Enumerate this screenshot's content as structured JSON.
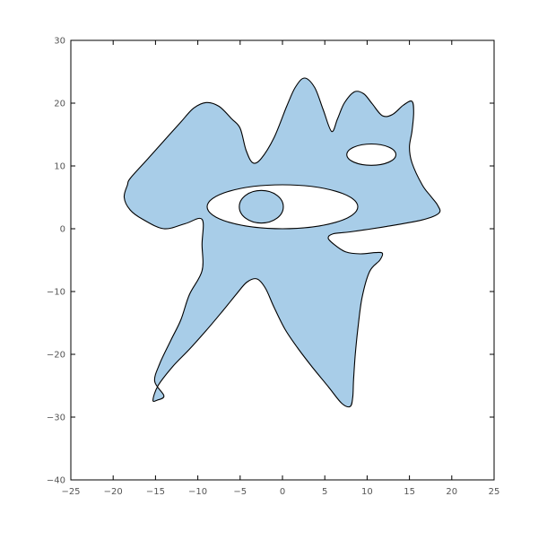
{
  "chart_data": {
    "type": "area",
    "title": "",
    "xlabel": "",
    "ylabel": "",
    "xlim": [
      -25,
      25
    ],
    "ylim": [
      -40,
      30
    ],
    "xticks": [
      -25,
      -20,
      -15,
      -10,
      -5,
      0,
      5,
      10,
      15,
      20,
      25
    ],
    "yticks": [
      -40,
      -30,
      -20,
      -10,
      0,
      10,
      20,
      30
    ],
    "grid": false,
    "fill_color": "#a8cde8",
    "edge_color": "#000000",
    "outline": [
      [
        -18,
        8
      ],
      [
        -16,
        11
      ],
      [
        -14,
        14
      ],
      [
        -12,
        17
      ],
      [
        -10.5,
        19.2
      ],
      [
        -9,
        20.1
      ],
      [
        -7.5,
        19.5
      ],
      [
        -6,
        17.5
      ],
      [
        -5,
        16
      ],
      [
        -4.3,
        12.5
      ],
      [
        -3.5,
        10.5
      ],
      [
        -2.5,
        11.2
      ],
      [
        -1,
        14.5
      ],
      [
        0.5,
        19.5
      ],
      [
        1.5,
        22.5
      ],
      [
        2.6,
        24
      ],
      [
        3.8,
        22.5
      ],
      [
        4.8,
        19
      ],
      [
        5.8,
        15.5
      ],
      [
        6.5,
        17.5
      ],
      [
        7.3,
        20
      ],
      [
        8.5,
        21.8
      ],
      [
        9.6,
        21.5
      ],
      [
        10.6,
        19.9
      ],
      [
        11.8,
        18
      ],
      [
        13,
        18.2
      ],
      [
        14.3,
        19.7
      ],
      [
        15.3,
        20.3
      ],
      [
        15.5,
        18.5
      ],
      [
        15.3,
        15.5
      ],
      [
        15,
        13
      ],
      [
        15.3,
        10.5
      ],
      [
        16.5,
        7
      ],
      [
        17.5,
        5.2
      ],
      [
        18.3,
        3.8
      ],
      [
        18.5,
        2.5
      ],
      [
        16.5,
        1.4
      ],
      [
        12,
        0.3
      ],
      [
        8,
        -0.5
      ],
      [
        6,
        -0.8
      ],
      [
        5.4,
        -1.5
      ],
      [
        6.2,
        -2.6
      ],
      [
        7.5,
        -3.7
      ],
      [
        9.2,
        -4.0
      ],
      [
        11,
        -3.8
      ],
      [
        11.8,
        -3.9
      ],
      [
        11.5,
        -5.0
      ],
      [
        10.3,
        -6.8
      ],
      [
        9.4,
        -11
      ],
      [
        8.9,
        -16
      ],
      [
        8.6,
        -20
      ],
      [
        8.4,
        -24
      ],
      [
        8.3,
        -26.8
      ],
      [
        8,
        -28.3
      ],
      [
        7,
        -27.8
      ],
      [
        5.5,
        -25.3
      ],
      [
        3.5,
        -22
      ],
      [
        1.8,
        -19
      ],
      [
        0.3,
        -16
      ],
      [
        -1,
        -12.5
      ],
      [
        -2,
        -9.5
      ],
      [
        -3,
        -8
      ],
      [
        -4.2,
        -8.5
      ],
      [
        -5.5,
        -10.5
      ],
      [
        -7,
        -13
      ],
      [
        -9,
        -16.2
      ],
      [
        -11,
        -19.2
      ],
      [
        -13,
        -22
      ],
      [
        -14.7,
        -25
      ],
      [
        -15.3,
        -27.3
      ],
      [
        -14.8,
        -27.3
      ],
      [
        -14,
        -26.6
      ],
      [
        -15.1,
        -24.3
      ],
      [
        -14.5,
        -21.5
      ],
      [
        -13.2,
        -17.8
      ],
      [
        -12,
        -14.5
      ],
      [
        -11,
        -10.5
      ],
      [
        -9.5,
        -6.7
      ],
      [
        -9.5,
        -2.5
      ],
      [
        -9.5,
        1.5
      ],
      [
        -11.5,
        0.8
      ],
      [
        -14,
        0
      ],
      [
        -16.5,
        1.5
      ],
      [
        -18,
        3
      ],
      [
        -18.7,
        5
      ],
      [
        -18.3,
        7
      ]
    ],
    "holes": [
      {
        "type": "ellipse",
        "cx": 0,
        "cy": 3.5,
        "rx": 8.9,
        "ry": 3.5
      },
      {
        "type": "ellipse",
        "cx": 10.5,
        "cy": 11.8,
        "rx": 2.9,
        "ry": 1.7
      }
    ],
    "islands": [
      {
        "type": "ellipse",
        "cx": -2.5,
        "cy": 3.5,
        "rx": 2.6,
        "ry": 2.6
      }
    ]
  }
}
